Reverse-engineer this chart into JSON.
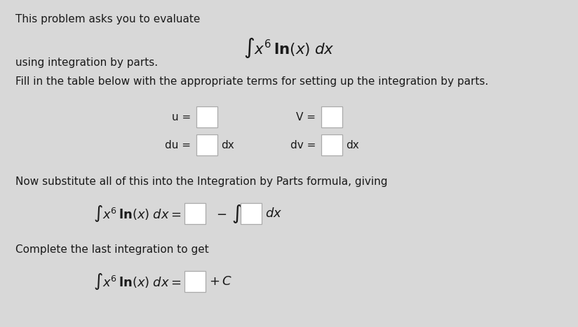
{
  "bg_color": "#d8d8d8",
  "text_color": "#1a1a1a",
  "line1": "This problem asks you to evaluate",
  "line2": "using integration by parts.",
  "line3": "Fill in the table below with the appropriate terms for setting up the integration by parts.",
  "line4": "Now substitute all of this into the Integration by Parts formula, giving",
  "line5": "Complete the last integration to get",
  "box_color": "#ffffff",
  "box_edge_color": "#aaaaaa",
  "fs_body": 11.0,
  "fs_math": 13.0,
  "fs_math_large": 14.5
}
